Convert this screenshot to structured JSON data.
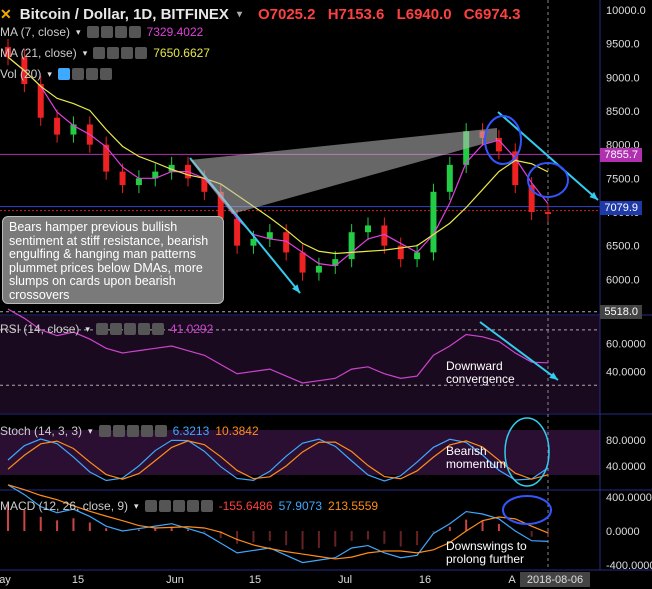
{
  "header": {
    "symbol": "Bitcoin / Dollar, 1D, BITFINEX",
    "open": "O7025.2",
    "high": "H7153.6",
    "low": "L6940.0",
    "close": "C6974.3"
  },
  "indicators": {
    "ma7": {
      "label": "MA (7, close)",
      "value": "7329.4022",
      "color": "#e040e0"
    },
    "ma21": {
      "label": "MA (21, close)",
      "value": "7650.6627",
      "color": "#e8e84a"
    },
    "vol": {
      "label": "Vol (20)"
    },
    "rsi": {
      "label": "RSI (14, close)",
      "value": "41.0292"
    },
    "stoch": {
      "label": "Stoch (14, 3, 3)",
      "k": "6.3213",
      "d": "10.3842"
    },
    "macd": {
      "label": "MACD (12, 26, close, 9)",
      "hist": "-155.6486",
      "macd": "57.9073",
      "signal": "213.5559"
    }
  },
  "annotations": {
    "note": "Bears hamper previous bullish sentiment at stiff resistance, bearish engulfing & hanging man patterns plummet prices below DMAs, more slumps on cards upon bearish crossovers",
    "rsi_note": "Downward convergence",
    "stoch_note": "Bearish momentum",
    "macd_note": "Downswings to prolong further"
  },
  "price_tags": {
    "resistance": "7855.7",
    "current": "7079.9",
    "support": "5518.0"
  },
  "chart_data": [
    {
      "type": "candlestick",
      "title": "Bitcoin / Dollar, 1D, BITFINEX",
      "x_ticks": [
        "ay",
        "15",
        "Jun",
        "15",
        "Jul",
        "16",
        "A",
        "2018-08-06"
      ],
      "y_ticks": [
        "10000.0",
        "9500.0",
        "9000.0",
        "8500.0",
        "8000.0",
        "7500.0",
        "7000.0",
        "6500.0",
        "6000.0"
      ],
      "ylim": [
        5500,
        10000
      ],
      "approx_close": [
        9300,
        8900,
        8400,
        8150,
        8300,
        8000,
        7600,
        7400,
        7500,
        7600,
        7700,
        7500,
        7300,
        6900,
        6500,
        6600,
        6700,
        6400,
        6100,
        6200,
        6300,
        6700,
        6800,
        6500,
        6300,
        6400,
        7300,
        7700,
        8200,
        8100,
        7900,
        7400,
        7000,
        6974
      ],
      "levels": {
        "resistance": 7855.7,
        "current": 7079.9,
        "support": 5518.0
      }
    },
    {
      "type": "line",
      "title": "RSI (14, close)",
      "y_ticks": [
        "60.0000",
        "40.0000"
      ],
      "last": 41.0292
    },
    {
      "type": "line",
      "title": "Stoch (14, 3, 3)",
      "y_ticks": [
        "80.0000",
        "40.0000"
      ],
      "series": [
        {
          "name": "K",
          "last": 6.3213
        },
        {
          "name": "D",
          "last": 10.3842
        }
      ]
    },
    {
      "type": "line",
      "title": "MACD (12, 26, close, 9)",
      "y_ticks": [
        "400.0000",
        "0.0000",
        "-400.0000"
      ],
      "series": [
        {
          "name": "Histogram",
          "last": -155.6486
        },
        {
          "name": "MACD",
          "last": 57.9073
        },
        {
          "name": "Signal",
          "last": 213.5559
        }
      ]
    }
  ]
}
